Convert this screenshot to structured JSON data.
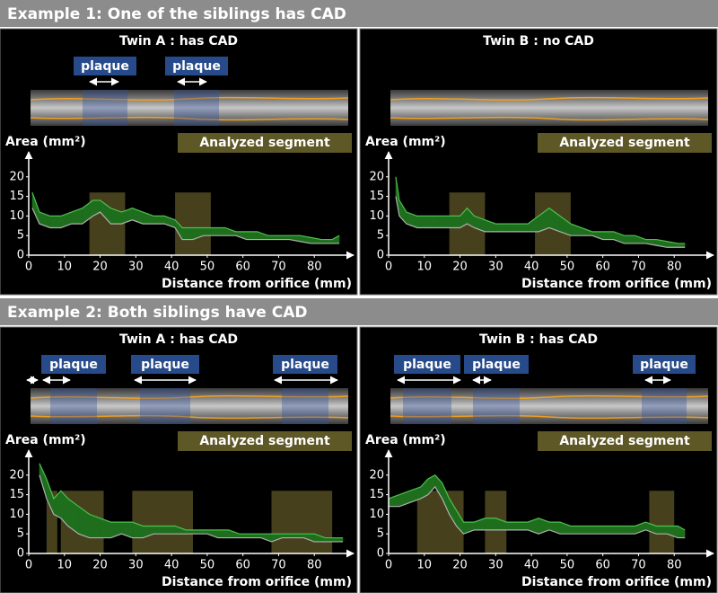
{
  "examples": [
    {
      "title": "Example 1: One of the siblings has CAD"
    },
    {
      "title": "Example 2: Both siblings have CAD"
    }
  ],
  "chart_data": [
    {
      "type": "band",
      "title": "Twin A : has CAD",
      "plaques": [
        "plaque",
        "plaque"
      ],
      "segment_label": "Analyzed segment",
      "ylabel": "Area (mm²)",
      "xlabel": "Distance from orifice (mm)",
      "x": [
        1,
        3,
        6,
        9,
        12,
        15,
        18,
        20,
        23,
        26,
        29,
        32,
        35,
        38,
        41,
        43,
        46,
        49,
        52,
        55,
        58,
        61,
        64,
        67,
        70,
        73,
        76,
        79,
        82,
        85,
        87
      ],
      "upper": [
        16,
        11,
        10,
        10,
        11,
        12,
        14,
        14,
        12,
        11,
        12,
        11,
        10,
        10,
        9,
        7,
        7,
        7,
        7,
        7,
        6,
        6,
        6,
        5,
        5,
        5,
        5,
        4.5,
        4,
        4,
        5
      ],
      "lower": [
        12,
        8,
        7,
        7,
        8,
        8,
        10,
        11,
        8,
        8,
        9,
        8,
        8,
        8,
        7,
        4,
        4,
        5,
        5,
        5,
        5,
        4,
        4,
        4,
        4,
        4,
        3.5,
        3,
        3,
        3,
        3
      ],
      "segments": [
        [
          17,
          27
        ],
        [
          41,
          51
        ]
      ],
      "xlim": [
        0,
        90
      ],
      "ylim": [
        0,
        25
      ],
      "xticks": [
        0,
        10,
        20,
        30,
        40,
        50,
        60,
        70,
        80
      ],
      "yticks": [
        0,
        5,
        10,
        15,
        20
      ],
      "band_color": "#1e6e1e",
      "upper_color": "#4cc04c",
      "lower_color": "#b0b0b0",
      "segment_color": "#5e5726"
    },
    {
      "type": "band",
      "title": "Twin B : no CAD",
      "plaques": [],
      "segment_label": "Analyzed segment",
      "ylabel": "Area (mm²)",
      "xlabel": "Distance from orifice (mm)",
      "x": [
        2,
        3,
        5,
        8,
        11,
        14,
        17,
        20,
        22,
        24,
        27,
        30,
        33,
        36,
        39,
        42,
        45,
        48,
        51,
        54,
        57,
        60,
        63,
        66,
        69,
        72,
        75,
        78,
        81,
        83
      ],
      "upper": [
        20,
        14,
        11,
        10,
        10,
        10,
        10,
        10,
        12,
        10,
        9,
        8,
        8,
        8,
        8,
        10,
        12,
        10,
        8,
        7,
        6,
        6,
        6,
        5,
        5,
        4,
        4,
        3.5,
        3,
        3
      ],
      "lower": [
        15,
        10,
        8,
        7,
        7,
        7,
        7,
        7,
        8,
        7,
        6,
        6,
        6,
        6,
        6,
        6,
        7,
        6,
        5,
        5,
        5,
        4,
        4,
        3,
        3,
        3,
        2.5,
        2,
        2,
        2
      ],
      "segments": [
        [
          17,
          27
        ],
        [
          41,
          51
        ]
      ],
      "xlim": [
        0,
        90
      ],
      "ylim": [
        0,
        25
      ],
      "xticks": [
        0,
        10,
        20,
        30,
        40,
        50,
        60,
        70,
        80
      ],
      "yticks": [
        0,
        5,
        10,
        15,
        20
      ],
      "band_color": "#1e6e1e",
      "upper_color": "#4cc04c",
      "lower_color": "#b0b0b0",
      "segment_color": "#5e5726"
    },
    {
      "type": "band",
      "title": "Twin A : has CAD",
      "plaques": [
        "plaque",
        "plaque",
        "plaque"
      ],
      "segment_label": "Analyzed segment",
      "ylabel": "Area (mm²)",
      "xlabel": "Distance from orifice (mm)",
      "x": [
        3,
        5,
        7,
        9,
        11,
        14,
        17,
        20,
        23,
        26,
        29,
        32,
        35,
        38,
        41,
        44,
        47,
        50,
        53,
        56,
        59,
        62,
        65,
        68,
        71,
        74,
        77,
        80,
        83,
        86,
        88
      ],
      "upper": [
        23,
        19,
        14,
        16,
        14,
        12,
        10,
        9,
        8,
        8,
        8,
        7,
        7,
        7,
        7,
        6,
        6,
        6,
        6,
        6,
        5,
        5,
        5,
        5,
        5,
        5,
        5,
        5,
        4,
        4,
        4
      ],
      "lower": [
        20,
        14,
        10,
        9,
        7,
        5,
        4,
        4,
        4,
        5,
        4,
        4,
        5,
        5,
        5,
        5,
        5,
        5,
        4,
        4,
        4,
        4,
        4,
        3,
        4,
        4,
        4,
        3,
        3,
        3,
        3
      ],
      "segments": [
        [
          5,
          8
        ],
        [
          9,
          21
        ],
        [
          29,
          46
        ],
        [
          68,
          85
        ]
      ],
      "xlim": [
        0,
        90
      ],
      "ylim": [
        0,
        25
      ],
      "xticks": [
        0,
        10,
        20,
        30,
        40,
        50,
        60,
        70,
        80
      ],
      "yticks": [
        0,
        5,
        10,
        15,
        20
      ],
      "band_color": "#1e6e1e",
      "upper_color": "#4cc04c",
      "lower_color": "#b0b0b0",
      "segment_color": "#5e5726"
    },
    {
      "type": "band",
      "title": "Twin B : has CAD",
      "plaques": [
        "plaque",
        "plaque",
        "plaque"
      ],
      "segment_label": "Analyzed segment",
      "ylabel": "Area (mm²)",
      "xlabel": "Distance from orifice (mm)",
      "x": [
        0,
        3,
        6,
        9,
        11,
        13,
        15,
        17,
        19,
        21,
        24,
        27,
        30,
        33,
        36,
        39,
        42,
        45,
        48,
        51,
        54,
        57,
        60,
        63,
        66,
        69,
        72,
        75,
        78,
        81,
        83
      ],
      "upper": [
        14,
        15,
        16,
        17,
        19,
        20,
        18,
        14,
        11,
        8,
        8,
        9,
        9,
        8,
        8,
        8,
        9,
        8,
        8,
        7,
        7,
        7,
        7,
        7,
        7,
        7,
        8,
        7,
        7,
        7,
        6
      ],
      "lower": [
        12,
        12,
        13,
        14,
        15,
        17,
        14,
        10,
        7,
        5,
        6,
        6,
        6,
        6,
        6,
        6,
        5,
        6,
        5,
        5,
        5,
        5,
        5,
        5,
        5,
        5,
        6,
        5,
        5,
        4,
        4
      ],
      "segments": [
        [
          8,
          21
        ],
        [
          27,
          33
        ],
        [
          73,
          80
        ]
      ],
      "xlim": [
        0,
        90
      ],
      "ylim": [
        0,
        25
      ],
      "xticks": [
        0,
        10,
        20,
        30,
        40,
        50,
        60,
        70,
        80
      ],
      "yticks": [
        0,
        5,
        10,
        15,
        20
      ],
      "band_color": "#1e6e1e",
      "upper_color": "#4cc04c",
      "lower_color": "#b0b0b0",
      "segment_color": "#5e5726"
    }
  ]
}
